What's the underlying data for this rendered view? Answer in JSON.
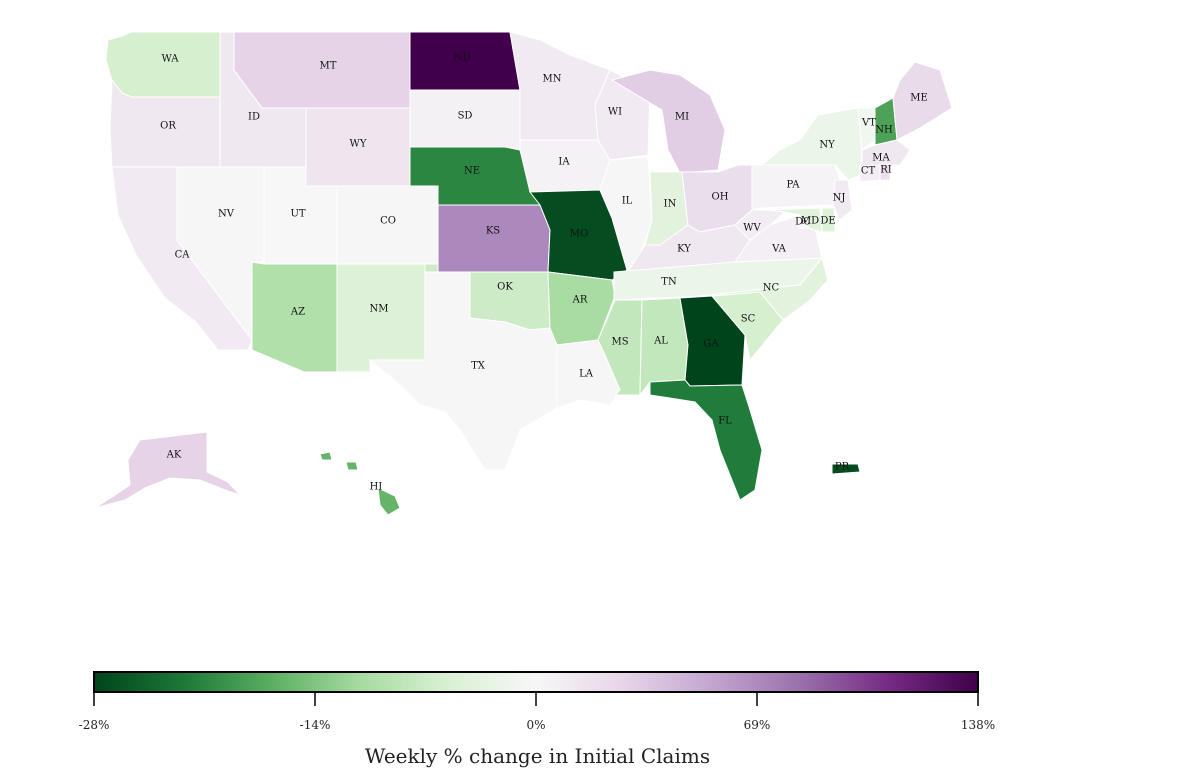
{
  "colors": {
    "scale": [
      "#00441b",
      "#1b7837",
      "#5aae61",
      "#a6dba0",
      "#d9f0d3",
      "#f7f7f7",
      "#e7d4e8",
      "#c2a5cf",
      "#9970ab",
      "#762a83",
      "#40004b"
    ]
  },
  "states": [
    {
      "id": "WA",
      "label": "WA",
      "v": -6
    },
    {
      "id": "OR",
      "label": "OR",
      "v": 12
    },
    {
      "id": "CA",
      "label": "CA",
      "v": 10
    },
    {
      "id": "ID",
      "label": "ID",
      "v": 12
    },
    {
      "id": "NV",
      "label": "NV",
      "v": 1
    },
    {
      "id": "MT",
      "label": "MT",
      "v": 28
    },
    {
      "id": "WY",
      "label": "WY",
      "v": 14
    },
    {
      "id": "UT",
      "label": "UT",
      "v": 0
    },
    {
      "id": "AZ",
      "label": "AZ",
      "v": -10
    },
    {
      "id": "CO",
      "label": "CO",
      "v": 1
    },
    {
      "id": "NM",
      "label": "NM",
      "v": -5
    },
    {
      "id": "ND",
      "label": "ND",
      "v": 138
    },
    {
      "id": "SD",
      "label": "SD",
      "v": 5
    },
    {
      "id": "NE",
      "label": "NE",
      "v": -21
    },
    {
      "id": "KS",
      "label": "KS",
      "v": 70
    },
    {
      "id": "OK",
      "label": "OK",
      "v": -7
    },
    {
      "id": "TX",
      "label": "TX",
      "v": 1
    },
    {
      "id": "MN",
      "label": "MN",
      "v": 10
    },
    {
      "id": "IA",
      "label": "IA",
      "v": 4
    },
    {
      "id": "MO",
      "label": "MO",
      "v": -27
    },
    {
      "id": "AR",
      "label": "AR",
      "v": -11
    },
    {
      "id": "LA",
      "label": "LA",
      "v": 1
    },
    {
      "id": "WI",
      "label": "WI",
      "v": 10
    },
    {
      "id": "IL",
      "label": "IL",
      "v": 1
    },
    {
      "id": "MI",
      "label": "MI",
      "v": 32
    },
    {
      "id": "IN",
      "label": "IN",
      "v": -4
    },
    {
      "id": "OH",
      "label": "OH",
      "v": 20
    },
    {
      "id": "KY",
      "label": "KY",
      "v": 12
    },
    {
      "id": "TN",
      "label": "TN",
      "v": -2
    },
    {
      "id": "MS",
      "label": "MS",
      "v": -8
    },
    {
      "id": "AL",
      "label": "AL",
      "v": -8
    },
    {
      "id": "GA",
      "label": "GA",
      "v": -28
    },
    {
      "id": "FL",
      "label": "FL",
      "v": -22
    },
    {
      "id": "SC",
      "label": "SC",
      "v": -6
    },
    {
      "id": "NC",
      "label": "NC",
      "v": -4
    },
    {
      "id": "VA",
      "label": "VA",
      "v": 6
    },
    {
      "id": "WV",
      "label": "WV",
      "v": 8
    },
    {
      "id": "PA",
      "label": "PA",
      "v": 3
    },
    {
      "id": "NY",
      "label": "NY",
      "v": -2
    },
    {
      "id": "VT",
      "label": "VT",
      "v": -1
    },
    {
      "id": "NH",
      "label": "NH",
      "v": -18
    },
    {
      "id": "ME",
      "label": "ME",
      "v": 22
    },
    {
      "id": "MA",
      "label": "MA",
      "v": 12
    },
    {
      "id": "RI",
      "label": "RI",
      "v": 20
    },
    {
      "id": "CT",
      "label": "CT",
      "v": 8
    },
    {
      "id": "NJ",
      "label": "NJ",
      "v": 10
    },
    {
      "id": "DE",
      "label": "DE",
      "v": -5
    },
    {
      "id": "MD",
      "label": "MD",
      "v": -4
    },
    {
      "id": "DC",
      "label": "DC",
      "v": 0
    },
    {
      "id": "AK",
      "label": "AK",
      "v": 28
    },
    {
      "id": "HI",
      "label": "HI",
      "v": -16
    },
    {
      "id": "PR",
      "label": "PR",
      "v": -27
    }
  ],
  "legend": {
    "title": "Weekly % change in Initial Claims",
    "ticks": [
      "-28%",
      "-14%",
      "0%",
      "69%",
      "138%"
    ]
  }
}
